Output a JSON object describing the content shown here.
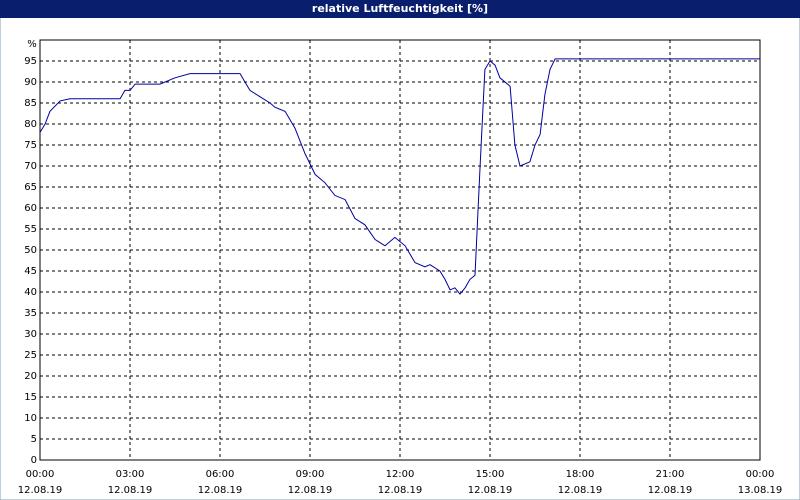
{
  "chart_data": {
    "type": "line",
    "title": "relative Luftfeuchtigkeit [%]",
    "y_unit": "%",
    "x": [
      0,
      0.17,
      0.33,
      0.67,
      1,
      2.67,
      2.83,
      3,
      3.17,
      4,
      4.5,
      5,
      6,
      6.67,
      6.83,
      7,
      7.33,
      7.67,
      7.83,
      8.17,
      8.5,
      8.83,
      9.17,
      9.5,
      9.83,
      10.17,
      10.5,
      10.83,
      11.17,
      11.5,
      11.83,
      12.17,
      12.5,
      12.83,
      13,
      13.33,
      13.5,
      13.67,
      13.83,
      14,
      14.17,
      14.33,
      14.5,
      14.67,
      14.83,
      15,
      15.17,
      15.33,
      15.67,
      15.83,
      16,
      16.33,
      16.5,
      16.67,
      16.83,
      17,
      17.17,
      24
    ],
    "series": [
      {
        "name": "relative Luftfeuchtigkeit",
        "color": "#0000a0",
        "values": [
          78,
          80,
          83,
          85.5,
          86,
          86,
          88,
          88,
          89.5,
          89.5,
          91,
          92,
          92,
          92,
          90,
          88,
          86.5,
          85,
          84,
          83,
          79,
          73,
          68,
          66,
          63,
          62,
          57.5,
          56,
          52.5,
          51,
          53,
          51,
          47,
          46,
          46.5,
          45,
          43,
          40.5,
          41,
          39.5,
          41,
          43,
          44,
          70,
          93,
          95,
          94,
          91,
          89,
          75,
          70,
          71,
          75,
          77.5,
          87,
          93,
          95.5,
          95.5
        ]
      }
    ],
    "xlim": [
      0,
      24
    ],
    "xticks": [
      {
        "value": 0,
        "label": "00:00"
      },
      {
        "value": 3,
        "label": "03:00"
      },
      {
        "value": 6,
        "label": "06:00"
      },
      {
        "value": 9,
        "label": "09:00"
      },
      {
        "value": 12,
        "label": "12:00"
      },
      {
        "value": 15,
        "label": "15:00"
      },
      {
        "value": 18,
        "label": "18:00"
      },
      {
        "value": 21,
        "label": "21:00"
      },
      {
        "value": 24,
        "label": "00:00"
      }
    ],
    "xtick_dates": [
      "12.08.19",
      "12.08.19",
      "12.08.19",
      "12.08.19",
      "12.08.19",
      "12.08.19",
      "12.08.19",
      "12.08.19",
      "13.08.19"
    ],
    "ylim": [
      0,
      100
    ],
    "yticks": [
      0,
      5,
      10,
      15,
      20,
      25,
      30,
      35,
      40,
      45,
      50,
      55,
      60,
      65,
      70,
      75,
      80,
      85,
      90,
      95
    ],
    "grid": true
  }
}
